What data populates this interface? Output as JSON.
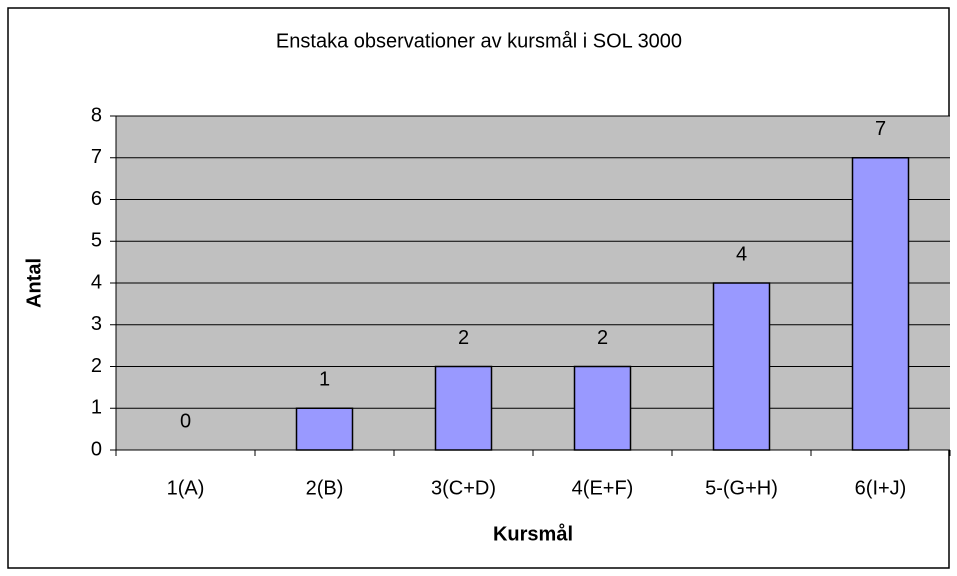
{
  "chart_data": {
    "type": "bar",
    "title": "Enstaka observationer av kursmål i SOL 3000",
    "x_label": "Kursmål",
    "y_label": "Antal",
    "categories": [
      "1(A)",
      "2(B)",
      "3(C+D)",
      "4(E+F)",
      "5-(G+H)",
      "6(I+J)"
    ],
    "values": [
      0,
      1,
      2,
      2,
      4,
      7
    ],
    "color": "#9999ff",
    "ylim": [
      0,
      8
    ],
    "yticks": [
      0,
      1,
      2,
      3,
      4,
      5,
      6,
      7,
      8
    ],
    "grid": true
  }
}
